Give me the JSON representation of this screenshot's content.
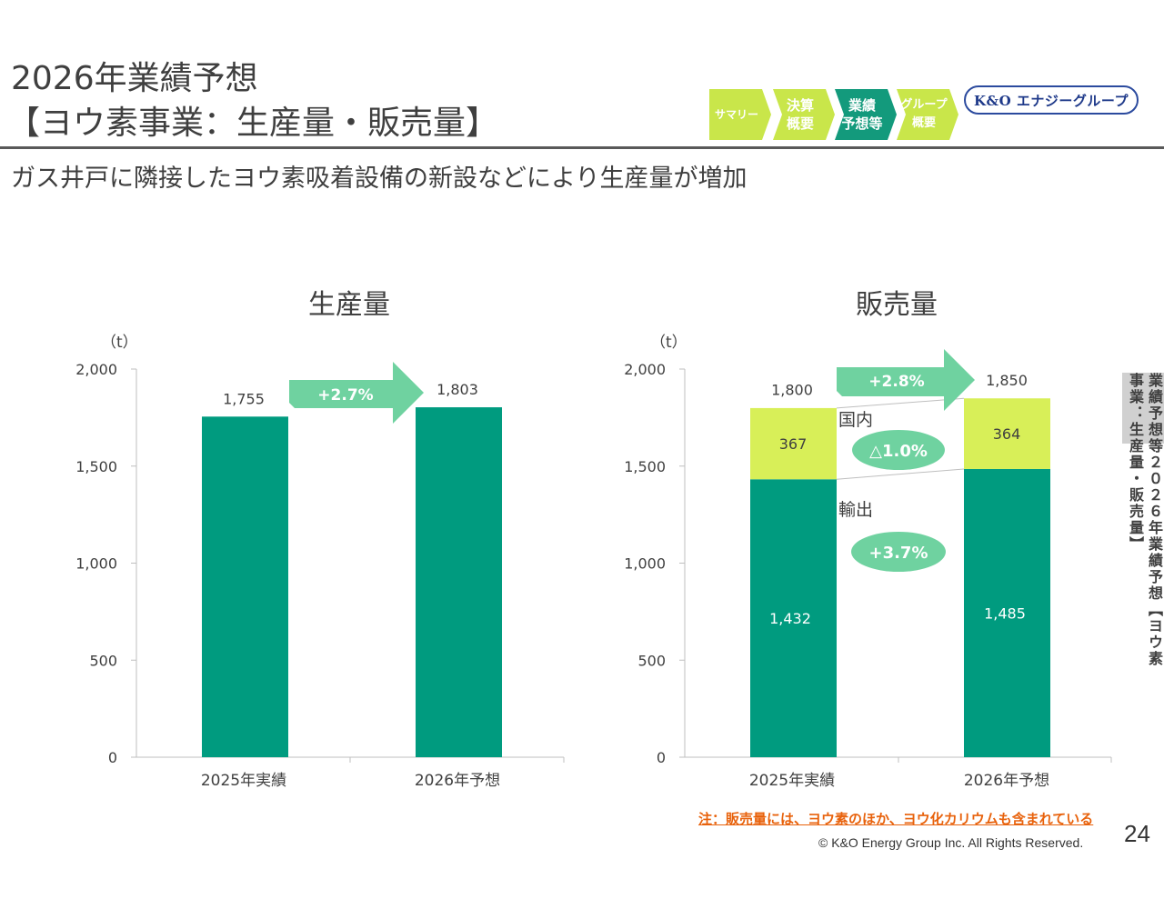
{
  "header": {
    "title_line1": "2026年業績予想",
    "title_line2": "【ヨウ素事業：生産量・販売量】",
    "subtitle": "ガス井戸に隣接したヨウ素吸着設備の新設などにより生産量が増加"
  },
  "nav": {
    "items": [
      {
        "label": "サマリー",
        "active": false
      },
      {
        "label": "決算\n概要",
        "active": false
      },
      {
        "label": "業績\n予想等",
        "active": true
      },
      {
        "label": "グループ\n概要",
        "active": false
      }
    ],
    "active_color": "#139a7c",
    "inactive_color": "#c9e64a"
  },
  "logo": {
    "text": "K&O エナジーグループ"
  },
  "side_tab": {
    "section": "業績予想等",
    "title": "２０２６年業績予想【ヨウ素事業：生産量・販売量】"
  },
  "colors": {
    "export": "#009b7f",
    "domestic": "#d8ef58",
    "arrow": "#6fd2a0",
    "axis": "#bfbfbf"
  },
  "chart_data": [
    {
      "type": "bar",
      "title": "生産量",
      "unit": "（t）",
      "categories": [
        "2025年実績",
        "2026年予想"
      ],
      "values": [
        1755,
        1803
      ],
      "value_labels": [
        "1,755",
        "1,803"
      ],
      "ylim": [
        0,
        2000
      ],
      "yticks": [
        0,
        500,
        1000,
        1500,
        2000
      ],
      "ytick_labels": [
        "0",
        "500",
        "1,000",
        "1,500",
        "2,000"
      ],
      "growth_label": "+2.7%"
    },
    {
      "type": "stacked_bar",
      "title": "販売量",
      "unit": "（t）",
      "categories": [
        "2025年実績",
        "2026年予想"
      ],
      "series": [
        {
          "name": "輸出",
          "values": [
            1432,
            1485
          ],
          "labels": [
            "1,432",
            "1,485"
          ],
          "change": "+3.7%"
        },
        {
          "name": "国内",
          "values": [
            367,
            364
          ],
          "labels": [
            "367",
            "364"
          ],
          "change": "△1.0%"
        }
      ],
      "totals": [
        1800,
        1850
      ],
      "total_labels": [
        "1,800",
        "1,850"
      ],
      "ylim": [
        0,
        2000
      ],
      "yticks": [
        0,
        500,
        1000,
        1500,
        2000
      ],
      "ytick_labels": [
        "0",
        "500",
        "1,000",
        "1,500",
        "2,000"
      ],
      "growth_label": "+2.8%"
    }
  ],
  "footer": {
    "note": "注：販売量には、ヨウ素のほか、ヨウ化カリウムも含まれている",
    "copyright": "© K&O Energy Group Inc. All Rights Reserved.",
    "page": "24"
  }
}
